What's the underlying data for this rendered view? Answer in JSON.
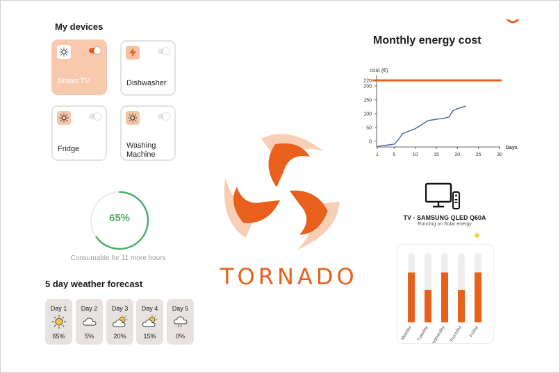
{
  "devices": {
    "title": "My devices",
    "items": [
      {
        "label": "Smart TV",
        "icon": "sun-icon",
        "active": true
      },
      {
        "label": "Dishwasher",
        "icon": "bolt-icon",
        "active": false
      },
      {
        "label": "Fridge",
        "icon": "sun-icon",
        "active": false
      },
      {
        "label": "Washing\nMachine",
        "icon": "sun-icon",
        "active": false
      }
    ]
  },
  "consumable": {
    "percent_label": "65%",
    "percent": 65,
    "caption": "Consumable for 11 more hours",
    "color": "#4caf6a"
  },
  "weather": {
    "title": "5 day weather forecast",
    "days": [
      {
        "day": "Day 1",
        "icon": "sun-icon",
        "chance": "65%"
      },
      {
        "day": "Day 2",
        "icon": "cloud-icon",
        "chance": "5%"
      },
      {
        "day": "Day 3",
        "icon": "partly-cloudy-icon",
        "chance": "20%"
      },
      {
        "day": "Day 4",
        "icon": "partly-cloudy-icon",
        "chance": "15%"
      },
      {
        "day": "Day 5",
        "icon": "rain-icon",
        "chance": "0%"
      }
    ]
  },
  "brand": {
    "name": "TORNADO",
    "color": "#e8601c",
    "light_color": "#f7cfb4"
  },
  "energy_chart": {
    "title": "Monthly energy cost",
    "chart_data": {
      "type": "line",
      "ylabel": "cost (€)",
      "xlabel": "Days",
      "x_ticks": [
        1,
        5,
        10,
        15,
        20,
        25,
        30
      ],
      "y_ticks": [
        0,
        50,
        100,
        150,
        200,
        220
      ],
      "y_tick_labels": [
        "0",
        "50",
        "100",
        "150",
        "200",
        "220"
      ],
      "xlim": [
        1,
        30
      ],
      "ylim": [
        -20,
        240
      ],
      "threshold": {
        "value": 220,
        "label": "220",
        "color": "#e8601c"
      },
      "series": [
        {
          "color": "#4a5fa8",
          "x": [
            1,
            5,
            6,
            7,
            9,
            10,
            12,
            13,
            15,
            16,
            17,
            18,
            19,
            20,
            22
          ],
          "y": [
            -18,
            -10,
            6,
            28,
            40,
            46,
            65,
            75,
            80,
            82,
            84,
            88,
            112,
            118,
            128
          ]
        }
      ]
    }
  },
  "tv_panel": {
    "name": "TV - SAMSUNG QLED Q60A",
    "status": "Running on Solar energy",
    "chart_data": {
      "type": "bar",
      "categories": [
        "Monday",
        "Tuesday",
        "Wednesday",
        "Thursday",
        "Friday"
      ],
      "values": [
        0.72,
        0.47,
        0.72,
        0.47,
        0.72
      ],
      "bar_color": "#e8601c",
      "track_color": "#eeeeee"
    }
  }
}
